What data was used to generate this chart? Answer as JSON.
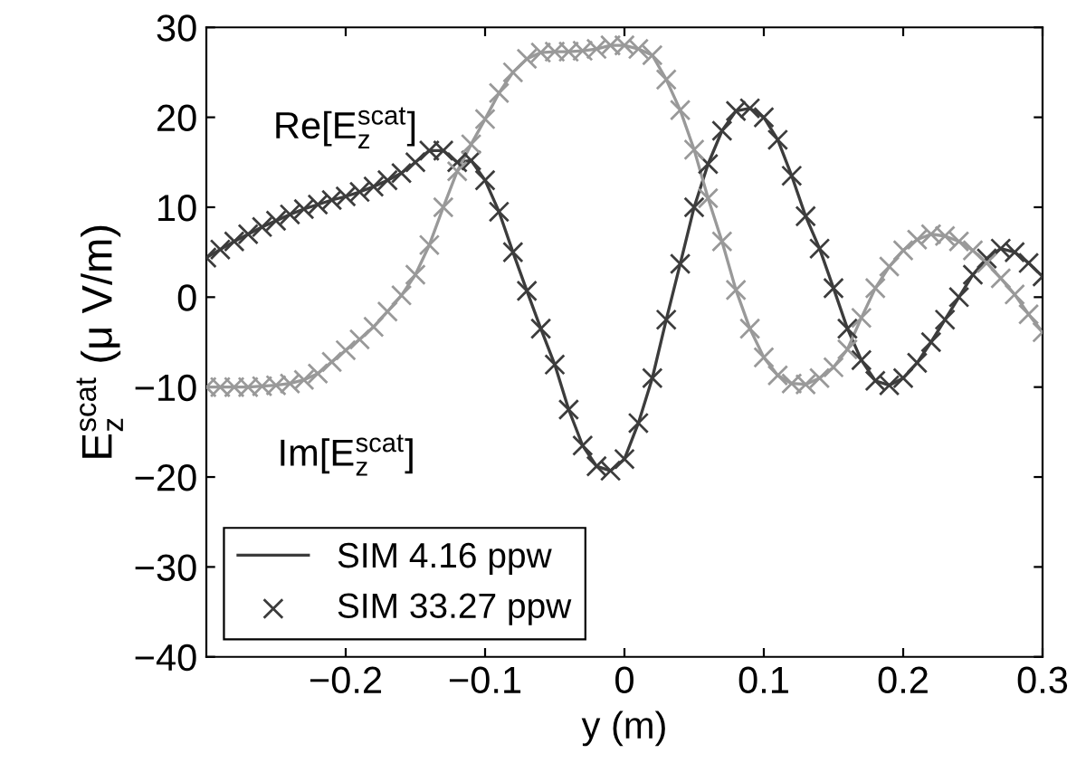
{
  "chart_data": {
    "type": "line",
    "xlabel": "y (m)",
    "ylabel": "E$^{scat}$$_{z}$ (μ V/m)",
    "xlim": [
      -0.3,
      0.3
    ],
    "ylim": [
      -40,
      30
    ],
    "xticks": [
      -0.2,
      -0.1,
      0,
      0.1,
      0.2,
      0.3
    ],
    "yticks": [
      -40,
      -30,
      -20,
      -10,
      0,
      10,
      20,
      30
    ],
    "grid": false,
    "legend": "bottom left",
    "x": [
      -0.3,
      -0.29,
      -0.28,
      -0.27,
      -0.26,
      -0.25,
      -0.24,
      -0.23,
      -0.22,
      -0.21,
      -0.2,
      -0.19,
      -0.18,
      -0.17,
      -0.16,
      -0.15,
      -0.14,
      -0.13,
      -0.12,
      -0.11,
      -0.1,
      -0.09,
      -0.08,
      -0.07,
      -0.06,
      -0.05,
      -0.04,
      -0.03,
      -0.02,
      -0.01,
      0.0,
      0.01,
      0.02,
      0.03,
      0.04,
      0.05,
      0.06,
      0.07,
      0.08,
      0.09,
      0.1,
      0.11,
      0.12,
      0.13,
      0.14,
      0.15,
      0.16,
      0.17,
      0.18,
      0.19,
      0.2,
      0.21,
      0.22,
      0.23,
      0.24,
      0.25,
      0.26,
      0.27,
      0.28,
      0.29,
      0.3
    ],
    "annotations": [
      "Re[E$^{scat}$$_{z}$]",
      "Im[E$^{scat}$$_{z}$]"
    ],
    "series": [
      {
        "name": "SIM 4.16 ppw",
        "marker": "none",
        "line_style": "solid",
        "color": "#3c3c3c",
        "values": [
          4.4,
          5.3,
          6.2,
          7.0,
          7.8,
          8.5,
          9.2,
          9.8,
          10.3,
          10.8,
          11.2,
          11.7,
          12.3,
          13.0,
          13.8,
          15.0,
          16.3,
          16.3,
          15.0,
          15.2,
          13.0,
          9.5,
          5.0,
          0.7,
          -3.5,
          -7.5,
          -12.5,
          -16.5,
          -18.8,
          -19.3,
          -18.0,
          -14.0,
          -9.0,
          -2.5,
          3.7,
          10.0,
          14.8,
          18.5,
          20.7,
          21.0,
          20.0,
          17.5,
          13.5,
          9.0,
          5.4,
          1.0,
          -3.5,
          -7.0,
          -9.3,
          -9.8,
          -9.0,
          -7.3,
          -5.0,
          -2.5,
          0.0,
          2.5,
          4.3,
          5.4,
          5.0,
          3.8,
          2.3
        ]
      },
      {
        "name": "SIM 33.27 ppw",
        "type": "scatter",
        "marker": "cross",
        "color": "#3c3c3c",
        "values": [
          4.4,
          5.3,
          6.2,
          7.0,
          7.8,
          8.5,
          9.2,
          9.8,
          10.3,
          10.8,
          11.2,
          11.7,
          12.3,
          13.0,
          13.8,
          15.0,
          16.3,
          16.3,
          15.0,
          15.2,
          13.0,
          9.5,
          5.0,
          0.7,
          -3.5,
          -7.5,
          -12.5,
          -16.5,
          -18.8,
          -19.3,
          -18.0,
          -14.0,
          -9.0,
          -2.5,
          3.7,
          10.0,
          14.8,
          18.5,
          20.7,
          21.0,
          20.0,
          17.5,
          13.5,
          9.0,
          5.4,
          1.0,
          -3.5,
          -7.0,
          -9.3,
          -9.8,
          -9.0,
          -7.3,
          -5.0,
          -2.5,
          0.0,
          2.5,
          4.3,
          5.4,
          5.0,
          3.8,
          2.3
        ]
      },
      {
        "marker": "none",
        "line_style": "solid",
        "color": "#999999",
        "values": [
          -10.0,
          -10.0,
          -10.0,
          -10.0,
          -9.9,
          -9.8,
          -9.6,
          -9.2,
          -8.5,
          -7.2,
          -5.9,
          -4.7,
          -3.3,
          -1.6,
          0.2,
          2.5,
          5.8,
          10.0,
          14.0,
          17.0,
          19.8,
          22.7,
          25.0,
          26.5,
          27.2,
          27.3,
          27.3,
          27.4,
          27.6,
          28.0,
          28.0,
          27.6,
          26.9,
          24.2,
          20.8,
          16.4,
          11.0,
          6.2,
          0.8,
          -3.5,
          -6.7,
          -8.7,
          -9.6,
          -9.7,
          -9.0,
          -7.8,
          -5.8,
          -2.3,
          1.0,
          3.4,
          5.2,
          6.4,
          7.0,
          6.8,
          6.2,
          5.2,
          3.8,
          2.1,
          0.3,
          -1.9,
          -3.9
        ]
      },
      {
        "type": "scatter",
        "marker": "cross",
        "color": "#999999",
        "values": [
          -10.0,
          -10.0,
          -10.0,
          -10.0,
          -9.9,
          -9.8,
          -9.6,
          -9.2,
          -8.5,
          -7.2,
          -5.9,
          -4.7,
          -3.3,
          -1.6,
          0.2,
          2.5,
          5.8,
          10.0,
          14.0,
          17.0,
          19.8,
          22.7,
          25.0,
          26.5,
          27.2,
          27.3,
          27.3,
          27.4,
          27.6,
          28.0,
          28.0,
          27.6,
          26.9,
          24.2,
          20.8,
          16.4,
          11.0,
          6.2,
          0.8,
          -3.5,
          -6.7,
          -8.7,
          -9.6,
          -9.7,
          -9.0,
          -7.8,
          -5.8,
          -2.3,
          1.0,
          3.4,
          5.2,
          6.4,
          7.0,
          6.8,
          6.2,
          5.2,
          3.8,
          2.1,
          0.3,
          -1.9,
          -3.9
        ]
      }
    ]
  }
}
